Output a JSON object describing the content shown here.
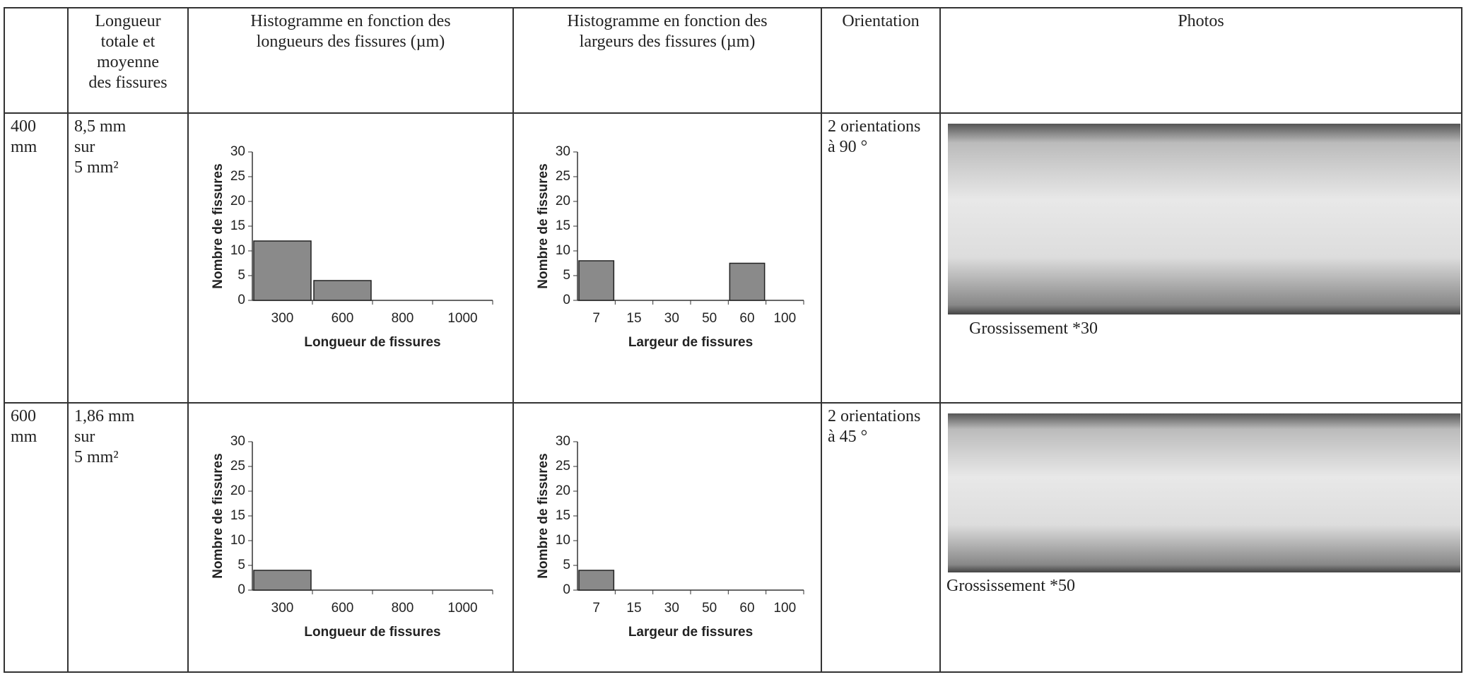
{
  "header": {
    "columns": [
      [
        "Longueur",
        "totale et",
        "moyenne",
        "des fissures"
      ],
      [
        "Histogramme en fonction des",
        "longueurs des fissures (µm)"
      ],
      [
        "Histogramme en fonction des",
        "largeurs des fissures (µm)"
      ],
      [
        "Orientation"
      ],
      [
        "Photos"
      ]
    ]
  },
  "rows": [
    {
      "label": [
        "400",
        "mm"
      ],
      "length": [
        "8,5 mm",
        "sur",
        "5 mm²"
      ],
      "length_hist": {
        "type": "bar",
        "categories": [
          "300",
          "600",
          "800",
          "1000"
        ],
        "values": [
          12,
          4,
          0,
          0
        ],
        "ylim": [
          0,
          30
        ],
        "yticks": [
          0,
          5,
          10,
          15,
          20,
          25,
          30
        ],
        "xlabel": "Longueur de fissures",
        "ylabel": "Nombre de fissures",
        "color": "#8a8a8a"
      },
      "width_hist": {
        "type": "bar",
        "categories": [
          "7",
          "15",
          "30",
          "50",
          "60",
          "100"
        ],
        "values": [
          8,
          0,
          0,
          0,
          7.5,
          0
        ],
        "ylim": [
          0,
          30
        ],
        "yticks": [
          0,
          5,
          10,
          15,
          20,
          25,
          30
        ],
        "xlabel": "Largeur de fissures",
        "ylabel": "Nombre de fissures",
        "color": "#8a8a8a"
      },
      "orientation": [
        "2 orientations",
        "à 90 °"
      ],
      "caption": "Grossissement *30"
    },
    {
      "label": [
        "600",
        "mm"
      ],
      "length": [
        "1,86 mm",
        "sur",
        "5 mm²"
      ],
      "length_hist": {
        "type": "bar",
        "categories": [
          "300",
          "600",
          "800",
          "1000"
        ],
        "values": [
          4,
          0,
          0,
          0
        ],
        "ylim": [
          0,
          30
        ],
        "yticks": [
          0,
          5,
          10,
          15,
          20,
          25,
          30
        ],
        "xlabel": "Longueur de fissures",
        "ylabel": "Nombre de fissures",
        "color": "#8a8a8a"
      },
      "width_hist": {
        "type": "bar",
        "categories": [
          "7",
          "15",
          "30",
          "50",
          "60",
          "100"
        ],
        "values": [
          4,
          0,
          0,
          0,
          0,
          0
        ],
        "ylim": [
          0,
          30
        ],
        "yticks": [
          0,
          5,
          10,
          15,
          20,
          25,
          30
        ],
        "xlabel": "Largeur de fissures",
        "ylabel": "Nombre de fissures",
        "color": "#8a8a8a"
      },
      "orientation": [
        "2 orientations",
        "à 45 °"
      ],
      "caption": "Grossissement *50"
    }
  ]
}
